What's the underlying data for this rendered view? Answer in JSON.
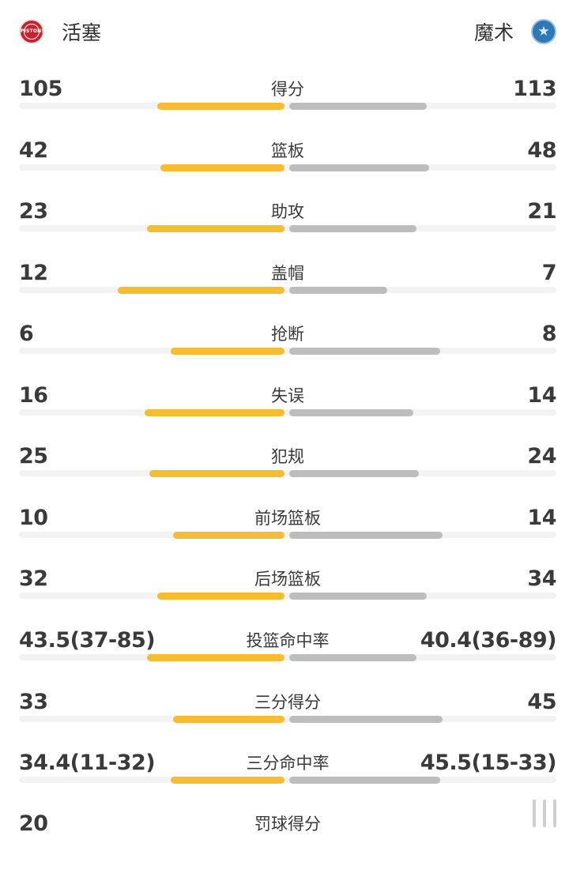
{
  "home_team": {
    "name": "活塞",
    "logo_text": "PISTONS",
    "color": "#c8242f"
  },
  "away_team": {
    "name": "魔术",
    "color": "#2f78b6"
  },
  "colors": {
    "home_bar": "#f6bd33",
    "away_bar": "#bdbdbd",
    "track": "#f3f3f3"
  },
  "stats": [
    {
      "label": "得分",
      "left": "105",
      "right": "113",
      "left_share": 0.48,
      "right_share": 0.52
    },
    {
      "label": "篮板",
      "left": "42",
      "right": "48",
      "left_share": 0.47,
      "right_share": 0.53
    },
    {
      "label": "助攻",
      "left": "23",
      "right": "21",
      "left_share": 0.52,
      "right_share": 0.48
    },
    {
      "label": "盖帽",
      "left": "12",
      "right": "7",
      "left_share": 0.63,
      "right_share": 0.37
    },
    {
      "label": "抢断",
      "left": "6",
      "right": "8",
      "left_share": 0.43,
      "right_share": 0.57
    },
    {
      "label": "失误",
      "left": "16",
      "right": "14",
      "left_share": 0.53,
      "right_share": 0.47
    },
    {
      "label": "犯规",
      "left": "25",
      "right": "24",
      "left_share": 0.51,
      "right_share": 0.49
    },
    {
      "label": "前场篮板",
      "left": "10",
      "right": "14",
      "left_share": 0.42,
      "right_share": 0.58
    },
    {
      "label": "后场篮板",
      "left": "32",
      "right": "34",
      "left_share": 0.48,
      "right_share": 0.52
    },
    {
      "label": "投篮命中率",
      "left": "43.5(37-85)",
      "right": "40.4(36-89)",
      "left_share": 0.52,
      "right_share": 0.48
    },
    {
      "label": "三分得分",
      "left": "33",
      "right": "45",
      "left_share": 0.42,
      "right_share": 0.58
    },
    {
      "label": "三分命中率",
      "left": "34.4(11-32)",
      "right": "45.5(15-33)",
      "left_share": 0.43,
      "right_share": 0.57
    },
    {
      "label": "罚球得分",
      "left": "20",
      "right": "",
      "left_share": 0,
      "right_share": 0
    }
  ]
}
